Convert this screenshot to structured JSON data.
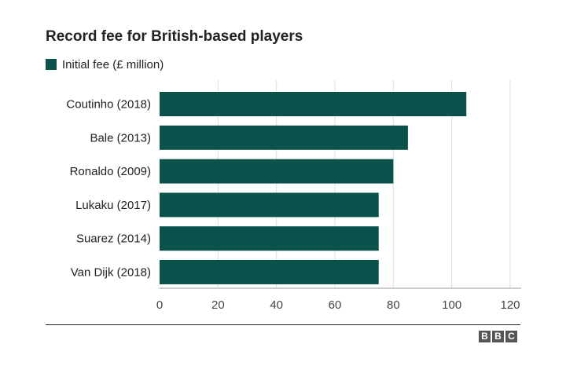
{
  "chart_data": {
    "type": "bar",
    "orientation": "horizontal",
    "title": "Record fee for British-based players",
    "categories": [
      "Coutinho (2018)",
      "Bale (2013)",
      "Ronaldo (2009)",
      "Lukaku (2017)",
      "Suarez (2014)",
      "Van Dijk (2018)"
    ],
    "series": [
      {
        "name": "Initial fee (£ million)",
        "values": [
          105,
          85,
          80,
          75,
          75,
          75
        ]
      }
    ],
    "xlim": [
      0,
      120
    ],
    "xticks": [
      0,
      20,
      40,
      60,
      80,
      100,
      120
    ],
    "grid": "vertical",
    "legend": "top-left",
    "bar_color": "#0b514c"
  },
  "source_logo": [
    "B",
    "B",
    "C"
  ]
}
